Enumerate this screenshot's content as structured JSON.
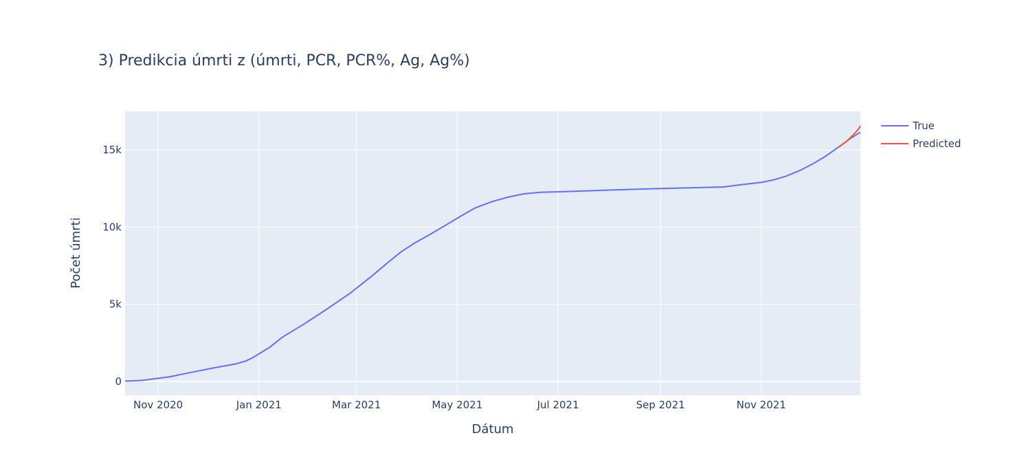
{
  "chart_data": {
    "type": "line",
    "title": "3) Predikcia úmrti z (úmrti, PCR, PCR%, Ag, Ag%)",
    "xlabel": "Dátum",
    "ylabel": "Počet úmrti",
    "x_range": [
      "2020-10-12",
      "2021-12-31"
    ],
    "ylim": [
      -900,
      17500
    ],
    "x_ticks": [
      {
        "date": "2020-11-01",
        "label": "Nov 2020"
      },
      {
        "date": "2021-01-01",
        "label": "Jan 2021"
      },
      {
        "date": "2021-03-01",
        "label": "Mar 2021"
      },
      {
        "date": "2021-05-01",
        "label": "May 2021"
      },
      {
        "date": "2021-07-01",
        "label": "Jul 2021"
      },
      {
        "date": "2021-09-01",
        "label": "Sep 2021"
      },
      {
        "date": "2021-11-01",
        "label": "Nov 2021"
      }
    ],
    "y_ticks": [
      {
        "value": 0,
        "label": "0"
      },
      {
        "value": 5000,
        "label": "5k"
      },
      {
        "value": 10000,
        "label": "10k"
      },
      {
        "value": 15000,
        "label": "15k"
      }
    ],
    "grid": true,
    "legend_position": "top-right",
    "series": [
      {
        "name": "True",
        "color": "#636efa",
        "points": [
          [
            "2020-10-12",
            20
          ],
          [
            "2020-10-22",
            60
          ],
          [
            "2020-11-08",
            300
          ],
          [
            "2020-11-20",
            560
          ],
          [
            "2020-12-05",
            880
          ],
          [
            "2020-12-18",
            1130
          ],
          [
            "2020-12-24",
            1320
          ],
          [
            "2020-12-28",
            1520
          ],
          [
            "2021-01-01",
            1780
          ],
          [
            "2021-01-08",
            2250
          ],
          [
            "2021-01-15",
            2850
          ],
          [
            "2021-01-28",
            3700
          ],
          [
            "2021-02-10",
            4600
          ],
          [
            "2021-02-25",
            5700
          ],
          [
            "2021-03-10",
            6800
          ],
          [
            "2021-03-20",
            7700
          ],
          [
            "2021-03-28",
            8400
          ],
          [
            "2021-04-05",
            8950
          ],
          [
            "2021-04-15",
            9550
          ],
          [
            "2021-04-26",
            10250
          ],
          [
            "2021-05-03",
            10700
          ],
          [
            "2021-05-12",
            11250
          ],
          [
            "2021-05-22",
            11650
          ],
          [
            "2021-06-01",
            11950
          ],
          [
            "2021-06-10",
            12150
          ],
          [
            "2021-06-20",
            12250
          ],
          [
            "2021-07-05",
            12300
          ],
          [
            "2021-08-01",
            12400
          ],
          [
            "2021-09-01",
            12500
          ],
          [
            "2021-10-09",
            12600
          ],
          [
            "2021-10-20",
            12750
          ],
          [
            "2021-11-01",
            12900
          ],
          [
            "2021-11-08",
            13050
          ],
          [
            "2021-11-16",
            13300
          ],
          [
            "2021-11-25",
            13700
          ],
          [
            "2021-12-03",
            14150
          ],
          [
            "2021-12-10",
            14600
          ],
          [
            "2021-12-18",
            15200
          ],
          [
            "2021-12-25",
            15750
          ],
          [
            "2021-12-31",
            16150
          ]
        ]
      },
      {
        "name": "Predicted",
        "color": "#ef553b",
        "points": [
          [
            "2021-12-18",
            15200
          ],
          [
            "2021-12-22",
            15500
          ],
          [
            "2021-12-26",
            15900
          ],
          [
            "2021-12-29",
            16250
          ],
          [
            "2021-12-31",
            16550
          ]
        ]
      }
    ]
  }
}
